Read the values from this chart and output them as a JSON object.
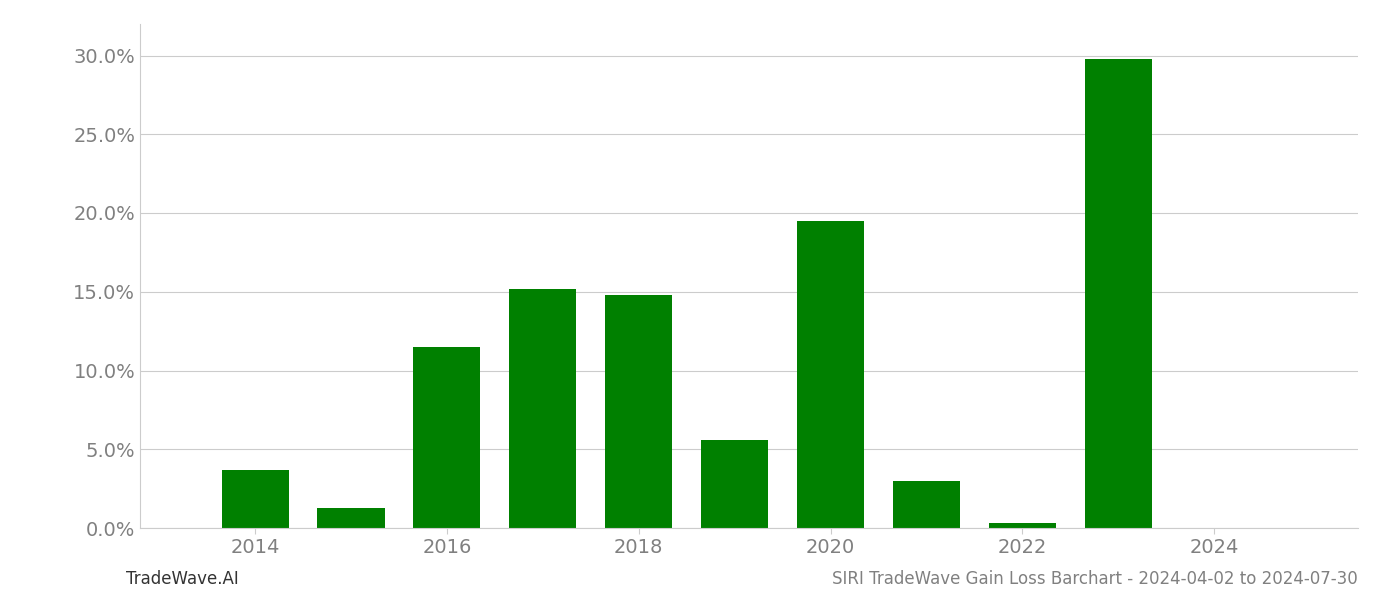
{
  "years": [
    2014,
    2015,
    2016,
    2017,
    2018,
    2019,
    2020,
    2021,
    2022,
    2023,
    2024
  ],
  "values": [
    0.037,
    0.013,
    0.115,
    0.152,
    0.148,
    0.056,
    0.195,
    0.03,
    0.003,
    0.298,
    0.0
  ],
  "bar_color": "#008000",
  "footer_left": "TradeWave.AI",
  "footer_right": "SIRI TradeWave Gain Loss Barchart - 2024-04-02 to 2024-07-30",
  "ylim": [
    0,
    0.32
  ],
  "yticks": [
    0.0,
    0.05,
    0.1,
    0.15,
    0.2,
    0.25,
    0.3
  ],
  "background_color": "#ffffff",
  "grid_color": "#cccccc",
  "tick_label_color": "#808080",
  "footer_fontsize": 12,
  "axis_fontsize": 14,
  "bar_width": 0.7,
  "xlim_left": 2012.8,
  "xlim_right": 2025.5
}
